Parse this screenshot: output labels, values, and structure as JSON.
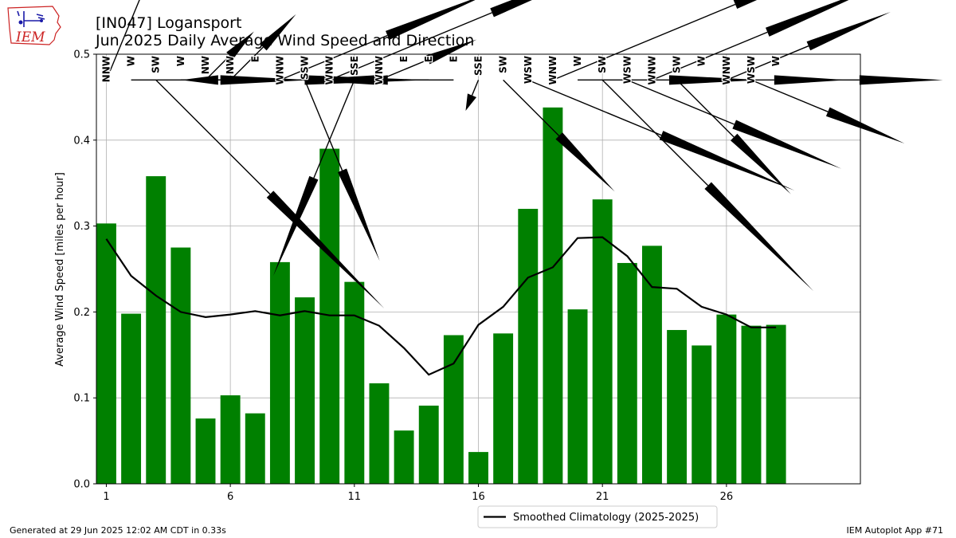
{
  "header": {
    "station": "[IN047] Logansport",
    "subtitle": "Jun 2025 Daily Average Wind Speed and Direction",
    "logo_text": "IEM"
  },
  "footer": {
    "generated": "Generated at 29 Jun 2025 12:02 AM CDT in 0.33s",
    "app": "IEM Autoplot App #71"
  },
  "colors": {
    "bar": "#008000",
    "climo": "#000000",
    "grid": "#b0b0b0",
    "logo": "#cc2222"
  },
  "chart_data": {
    "type": "bar",
    "ylabel": "Average Wind Speed [miles per hour]",
    "xlabel": "",
    "ylim": [
      0,
      0.5
    ],
    "xlim": [
      0.6,
      31.4
    ],
    "yticks": [
      0.0,
      0.1,
      0.2,
      0.3,
      0.4,
      0.5
    ],
    "xticks": [
      1,
      6,
      11,
      16,
      21,
      26
    ],
    "grid": true,
    "legend_position": "bottom-center",
    "days": [
      1,
      2,
      3,
      4,
      5,
      6,
      7,
      8,
      9,
      10,
      11,
      12,
      13,
      14,
      15,
      16,
      17,
      18,
      19,
      20,
      21,
      22,
      23,
      24,
      25,
      26,
      27,
      28
    ],
    "speed": [
      0.303,
      0.198,
      0.358,
      0.275,
      0.076,
      0.103,
      0.082,
      0.258,
      0.217,
      0.39,
      0.235,
      0.117,
      0.062,
      0.091,
      0.173,
      0.037,
      0.175,
      0.32,
      0.438,
      0.203,
      0.331,
      0.257,
      0.277,
      0.179,
      0.161,
      0.197,
      0.184,
      0.185
    ],
    "direction": [
      "NNW",
      "W",
      "SW",
      "W",
      "NW",
      "NW",
      "E",
      "WNW",
      "SSW",
      "WNW",
      "SSE",
      "WNW",
      "E",
      "E",
      "E",
      "SSE",
      "SW",
      "WSW",
      "WNW",
      "W",
      "SW",
      "WSW",
      "WNW",
      "SW",
      "W",
      "WNW",
      "WSW",
      "W"
    ],
    "series": [
      {
        "name": "Smoothed Climatology (2025-2025)",
        "x": [
          1,
          2,
          3,
          4,
          5,
          6,
          7,
          8,
          9,
          10,
          11,
          12,
          13,
          14,
          15,
          16,
          17,
          18,
          19,
          20,
          21,
          22,
          23,
          24,
          25,
          26,
          27,
          28
        ],
        "values": [
          0.285,
          0.242,
          0.219,
          0.2,
          0.194,
          0.197,
          0.201,
          0.196,
          0.201,
          0.196,
          0.196,
          0.184,
          0.158,
          0.127,
          0.14,
          0.185,
          0.206,
          0.24,
          0.252,
          0.286,
          0.287,
          0.265,
          0.229,
          0.227,
          0.206,
          0.197,
          0.182,
          0.182
        ]
      }
    ]
  }
}
